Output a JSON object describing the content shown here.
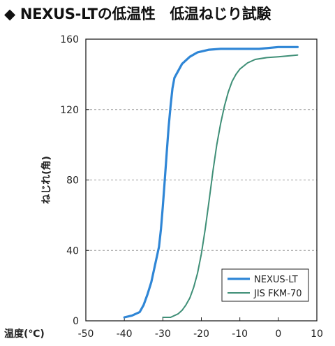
{
  "title": "◆ NEXUS-LTの低温性　低温ねじり試験",
  "colors": {
    "nexus": "#2f86d6",
    "fkm": "#3f8f77",
    "axis": "#222222",
    "grid": "#9a9a9a",
    "text": "#222222"
  },
  "chart_data": {
    "type": "line",
    "xlabel": "温度(℃)",
    "ylabel": "ねじれ(角)",
    "xlim": [
      -50,
      10
    ],
    "ylim": [
      0,
      160
    ],
    "x_ticks": [
      "-50",
      "-40",
      "-30",
      "-20",
      "-10",
      "0",
      "10"
    ],
    "y_ticks": [
      "0",
      "40",
      "80",
      "120",
      "160"
    ],
    "grid": "horizontal dashed",
    "legend_position": "bottom-right",
    "series": [
      {
        "name": "NEXUS-LT",
        "color": "#2f86d6",
        "points": [
          [
            -40,
            2
          ],
          [
            -38,
            3
          ],
          [
            -36,
            5
          ],
          [
            -35,
            9
          ],
          [
            -34,
            15
          ],
          [
            -33,
            22
          ],
          [
            -32,
            32
          ],
          [
            -31,
            42
          ],
          [
            -30.5,
            52
          ],
          [
            -30,
            65
          ],
          [
            -29.5,
            80
          ],
          [
            -29,
            95
          ],
          [
            -28.5,
            110
          ],
          [
            -28,
            122
          ],
          [
            -27.5,
            132
          ],
          [
            -27,
            138
          ],
          [
            -26,
            142
          ],
          [
            -25,
            146
          ],
          [
            -23,
            150
          ],
          [
            -21,
            152.5
          ],
          [
            -18,
            154
          ],
          [
            -15,
            154.5
          ],
          [
            -10,
            154.5
          ],
          [
            -5,
            154.5
          ],
          [
            0,
            155.5
          ],
          [
            5,
            155.5
          ]
        ]
      },
      {
        "name": "JIS FKM-70",
        "color": "#3f8f77",
        "points": [
          [
            -30,
            2
          ],
          [
            -28,
            2
          ],
          [
            -26,
            4
          ],
          [
            -25,
            6
          ],
          [
            -24,
            9
          ],
          [
            -23,
            13
          ],
          [
            -22,
            19
          ],
          [
            -21,
            27
          ],
          [
            -20,
            38
          ],
          [
            -19,
            52
          ],
          [
            -18,
            68
          ],
          [
            -17,
            85
          ],
          [
            -16,
            100
          ],
          [
            -15,
            112
          ],
          [
            -14,
            122
          ],
          [
            -13,
            130
          ],
          [
            -12,
            136
          ],
          [
            -11,
            140
          ],
          [
            -10,
            143
          ],
          [
            -8,
            146.5
          ],
          [
            -6,
            148.5
          ],
          [
            -3,
            149.5
          ],
          [
            0,
            150
          ],
          [
            5,
            151
          ]
        ]
      }
    ]
  }
}
